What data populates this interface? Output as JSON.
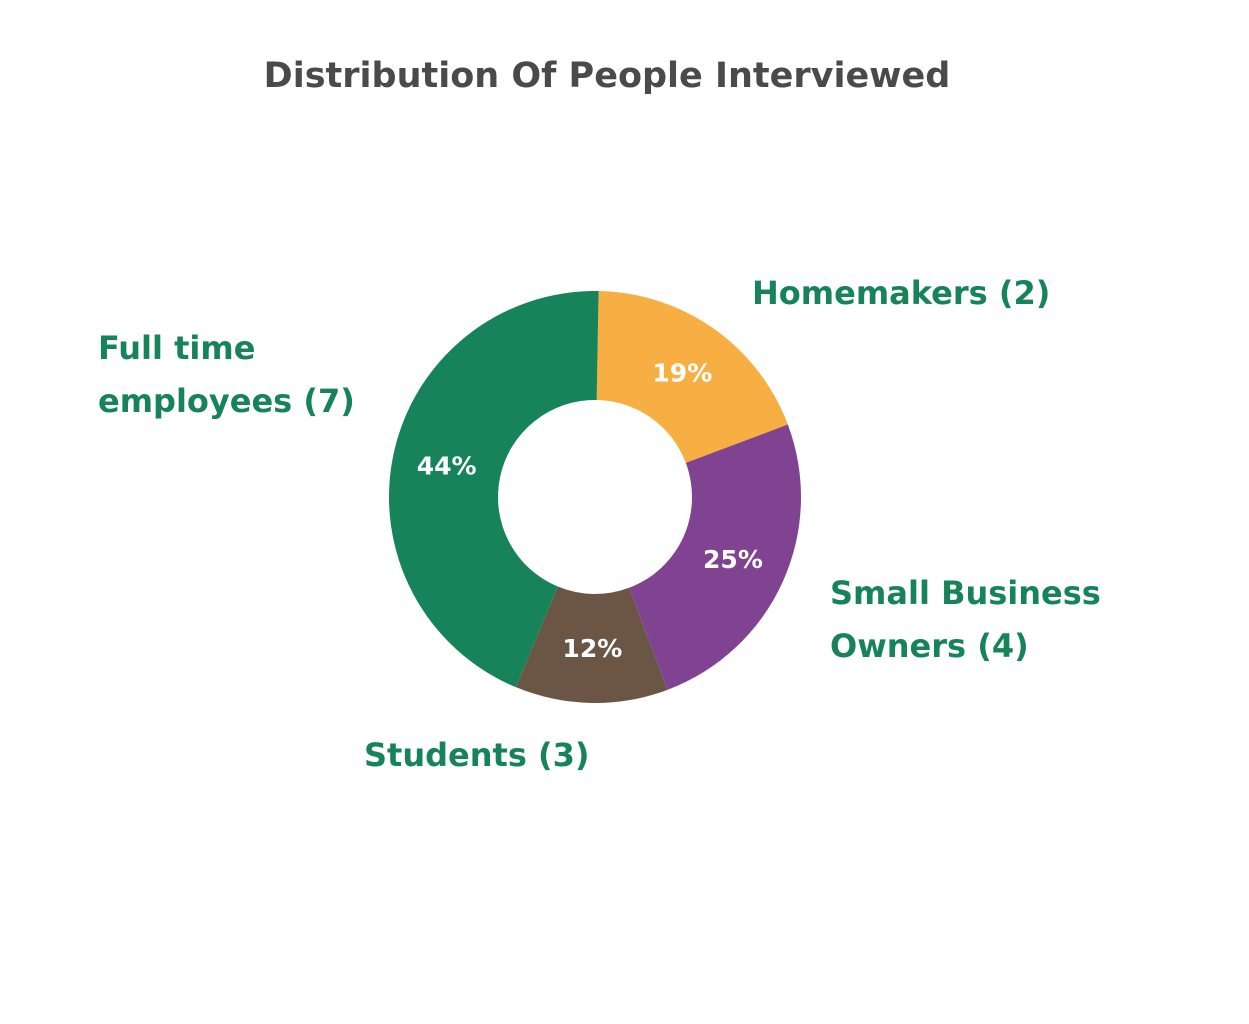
{
  "chart_data": {
    "type": "pie",
    "title": "Distribution Of People Interviewed",
    "donut": true,
    "slices": [
      {
        "name": "Homemakers",
        "count": 2,
        "value": 19,
        "value_label": "19%",
        "color": "#f7ae42",
        "label_lines": [
          "Homemakers (2)"
        ]
      },
      {
        "name": "Small Business Owners",
        "count": 4,
        "value": 25,
        "value_label": "25%",
        "color": "#804391",
        "label_lines": [
          "Small Business",
          "Owners (4)"
        ]
      },
      {
        "name": "Students",
        "count": 3,
        "value": 12,
        "value_label": "12%",
        "color": "#6b5646",
        "label_lines": [
          "Students (3)"
        ]
      },
      {
        "name": "Full time employees",
        "count": 7,
        "value": 44,
        "value_label": "44%",
        "color": "#17835a",
        "label_lines": [
          "Full time",
          "employees (7)"
        ]
      }
    ]
  }
}
